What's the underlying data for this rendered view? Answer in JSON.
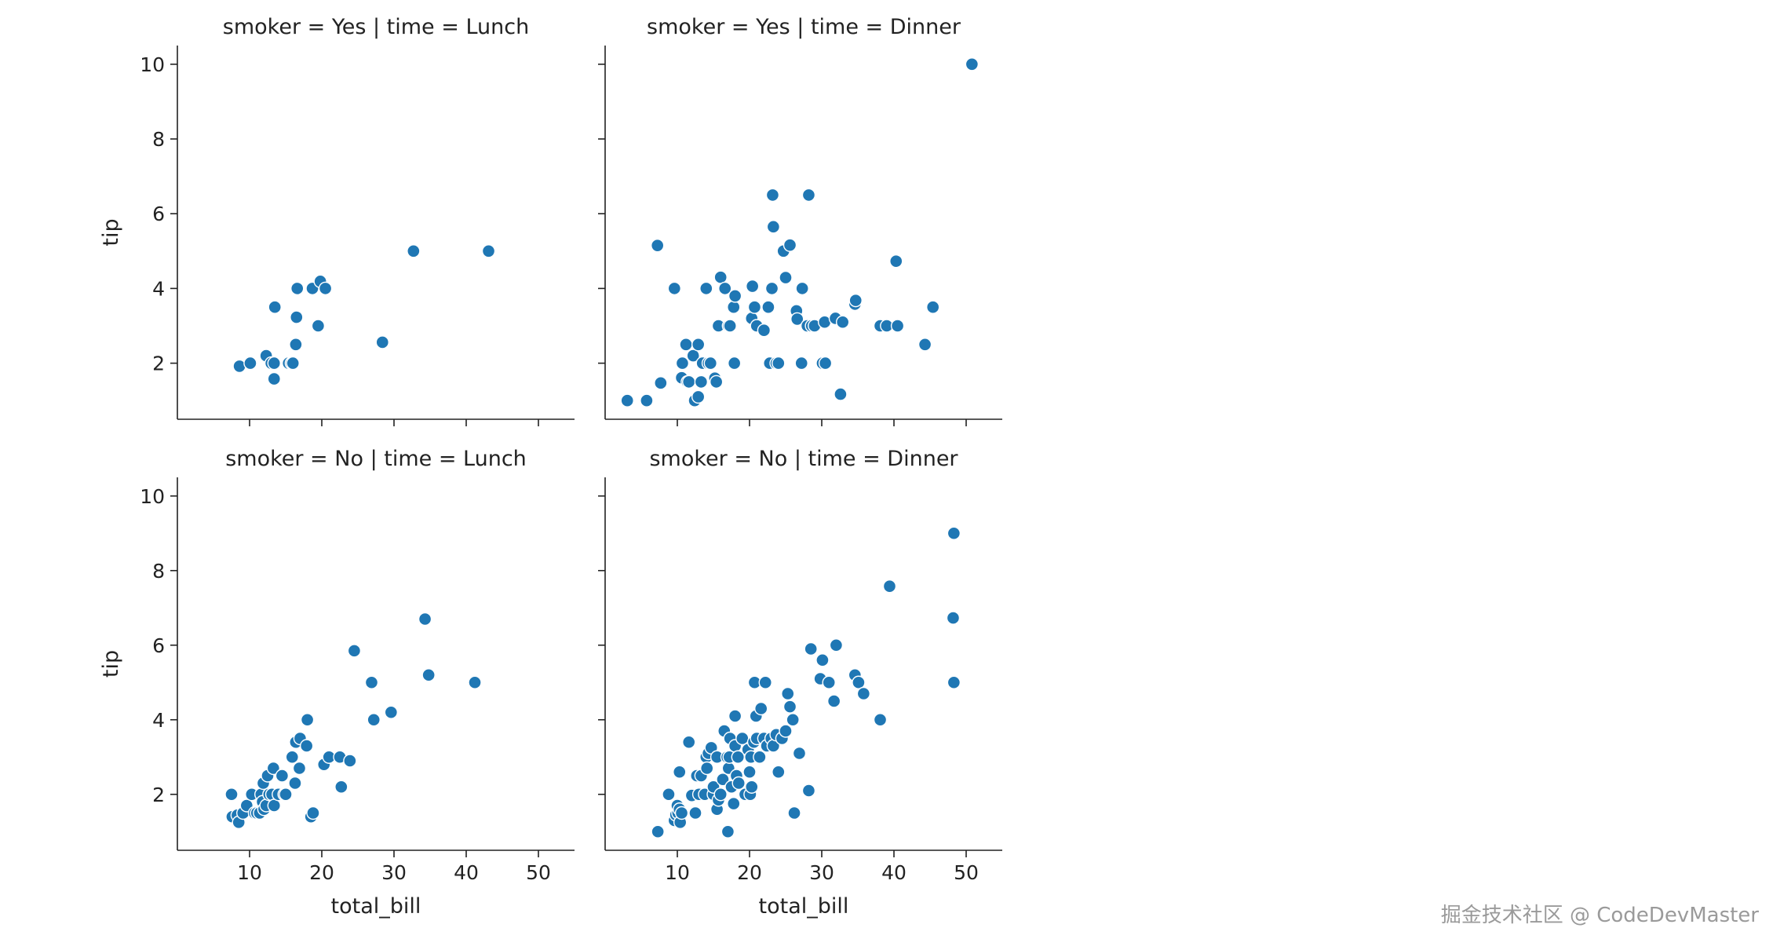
{
  "chart_data": {
    "type": "scatter",
    "description_text": {
      "xlabel": "total_bill",
      "ylabel": "tip"
    },
    "xlim": [
      0,
      55
    ],
    "ylim": [
      0.5,
      10.5
    ],
    "xticks": [
      10,
      20,
      30,
      40,
      50
    ],
    "yticks": [
      2,
      4,
      6,
      8,
      10
    ],
    "marker_color": "#1f77b4",
    "panels": [
      {
        "title": "smoker = Yes | time = Lunch",
        "points": [
          [
            8.6,
            1.92
          ],
          [
            10.1,
            2.0
          ],
          [
            12.3,
            2.2
          ],
          [
            13.0,
            2.0
          ],
          [
            13.4,
            2.0
          ],
          [
            13.4,
            1.58
          ],
          [
            13.5,
            3.5
          ],
          [
            15.4,
            2.0
          ],
          [
            15.8,
            2.0
          ],
          [
            16.0,
            2.0
          ],
          [
            16.4,
            2.5
          ],
          [
            16.5,
            3.23
          ],
          [
            16.6,
            4.0
          ],
          [
            18.7,
            4.0
          ],
          [
            19.5,
            3.0
          ],
          [
            19.8,
            4.19
          ],
          [
            20.5,
            4.0
          ],
          [
            28.4,
            2.56
          ],
          [
            32.7,
            5.0
          ],
          [
            43.1,
            5.0
          ]
        ]
      },
      {
        "title": "smoker = Yes | time = Dinner",
        "points": [
          [
            3.07,
            1.0
          ],
          [
            5.75,
            1.0
          ],
          [
            7.25,
            5.15
          ],
          [
            7.7,
            1.47
          ],
          [
            9.6,
            4.0
          ],
          [
            10.6,
            1.61
          ],
          [
            10.7,
            2.0
          ],
          [
            11.2,
            2.5
          ],
          [
            11.4,
            1.5
          ],
          [
            11.6,
            1.5
          ],
          [
            12.2,
            2.2
          ],
          [
            12.4,
            1.0
          ],
          [
            12.9,
            1.1
          ],
          [
            12.9,
            2.5
          ],
          [
            13.3,
            1.5
          ],
          [
            13.5,
            2.0
          ],
          [
            14.0,
            4.0
          ],
          [
            14.3,
            2.0
          ],
          [
            14.6,
            2.0
          ],
          [
            15.2,
            1.6
          ],
          [
            15.4,
            1.5
          ],
          [
            15.7,
            3.0
          ],
          [
            16.0,
            4.3
          ],
          [
            16.6,
            4.0
          ],
          [
            17.1,
            3.0
          ],
          [
            17.3,
            3.0
          ],
          [
            17.8,
            3.5
          ],
          [
            17.9,
            2.0
          ],
          [
            18.0,
            3.8
          ],
          [
            20.3,
            3.2
          ],
          [
            20.4,
            4.06
          ],
          [
            20.7,
            3.5
          ],
          [
            21.0,
            3.0
          ],
          [
            22.0,
            2.88
          ],
          [
            22.6,
            3.5
          ],
          [
            22.8,
            2.0
          ],
          [
            23.1,
            4.0
          ],
          [
            23.2,
            6.5
          ],
          [
            23.3,
            5.65
          ],
          [
            23.7,
            2.0
          ],
          [
            24.0,
            2.0
          ],
          [
            24.7,
            5.0
          ],
          [
            25.0,
            4.29
          ],
          [
            25.6,
            5.16
          ],
          [
            26.5,
            3.4
          ],
          [
            26.6,
            3.18
          ],
          [
            27.2,
            2.0
          ],
          [
            27.3,
            4.0
          ],
          [
            28.0,
            3.0
          ],
          [
            28.2,
            6.5
          ],
          [
            28.6,
            3.0
          ],
          [
            29.0,
            3.0
          ],
          [
            30.1,
            2.0
          ],
          [
            30.5,
            2.0
          ],
          [
            30.4,
            3.1
          ],
          [
            31.9,
            3.2
          ],
          [
            32.6,
            1.17
          ],
          [
            32.9,
            3.1
          ],
          [
            34.6,
            3.58
          ],
          [
            34.7,
            3.68
          ],
          [
            38.1,
            3.0
          ],
          [
            39.0,
            3.0
          ],
          [
            40.3,
            4.73
          ],
          [
            40.5,
            3.0
          ],
          [
            44.3,
            2.5
          ],
          [
            45.4,
            3.5
          ],
          [
            50.8,
            10.0
          ]
        ]
      },
      {
        "title": "smoker = No | time = Lunch",
        "points": [
          [
            7.5,
            2.0
          ],
          [
            7.6,
            1.4
          ],
          [
            8.3,
            1.44
          ],
          [
            8.5,
            1.25
          ],
          [
            9.1,
            1.5
          ],
          [
            9.6,
            1.7
          ],
          [
            10.3,
            2.0
          ],
          [
            10.7,
            1.5
          ],
          [
            11.0,
            1.5
          ],
          [
            11.4,
            1.5
          ],
          [
            11.6,
            2.0
          ],
          [
            11.8,
            1.8
          ],
          [
            11.9,
            2.3
          ],
          [
            12.0,
            1.6
          ],
          [
            12.3,
            1.7
          ],
          [
            12.5,
            2.5
          ],
          [
            12.7,
            2.0
          ],
          [
            13.1,
            2.0
          ],
          [
            13.3,
            2.7
          ],
          [
            13.4,
            1.7
          ],
          [
            14.0,
            2.0
          ],
          [
            14.5,
            2.5
          ],
          [
            14.8,
            2.0
          ],
          [
            15.0,
            2.0
          ],
          [
            15.9,
            3.0
          ],
          [
            16.3,
            2.3
          ],
          [
            16.4,
            3.4
          ],
          [
            16.9,
            2.7
          ],
          [
            17.0,
            3.5
          ],
          [
            17.9,
            3.3
          ],
          [
            18.0,
            4.0
          ],
          [
            18.5,
            1.4
          ],
          [
            18.8,
            1.5
          ],
          [
            20.3,
            2.8
          ],
          [
            21.0,
            3.0
          ],
          [
            22.5,
            3.0
          ],
          [
            22.7,
            2.2
          ],
          [
            23.9,
            2.9
          ],
          [
            24.5,
            5.85
          ],
          [
            26.9,
            5.0
          ],
          [
            27.2,
            4.0
          ],
          [
            29.6,
            4.2
          ],
          [
            34.3,
            6.7
          ],
          [
            34.8,
            5.2
          ],
          [
            41.2,
            5.0
          ]
        ]
      },
      {
        "title": "smoker = No | time = Dinner",
        "points": [
          [
            7.3,
            1.0
          ],
          [
            8.8,
            2.0
          ],
          [
            9.6,
            1.3
          ],
          [
            9.8,
            1.45
          ],
          [
            10.0,
            1.7
          ],
          [
            10.1,
            1.5
          ],
          [
            10.3,
            1.6
          ],
          [
            10.3,
            2.6
          ],
          [
            10.4,
            1.25
          ],
          [
            10.6,
            1.5
          ],
          [
            11.6,
            3.4
          ],
          [
            12.0,
            1.97
          ],
          [
            12.5,
            1.5
          ],
          [
            12.7,
            2.5
          ],
          [
            13.0,
            2.0
          ],
          [
            13.3,
            2.5
          ],
          [
            13.8,
            2.0
          ],
          [
            14.0,
            3.0
          ],
          [
            14.1,
            2.7
          ],
          [
            14.3,
            3.1
          ],
          [
            14.7,
            3.25
          ],
          [
            15.0,
            2.0
          ],
          [
            15.0,
            2.2
          ],
          [
            15.5,
            3.0
          ],
          [
            15.5,
            1.6
          ],
          [
            15.7,
            1.85
          ],
          [
            16.0,
            2.0
          ],
          [
            16.3,
            2.4
          ],
          [
            16.5,
            3.7
          ],
          [
            16.9,
            3.0
          ],
          [
            17.0,
            1.0
          ],
          [
            17.1,
            2.7
          ],
          [
            17.2,
            3.0
          ],
          [
            17.3,
            3.5
          ],
          [
            17.5,
            2.2
          ],
          [
            17.8,
            1.75
          ],
          [
            18.0,
            4.1
          ],
          [
            18.0,
            3.3
          ],
          [
            18.2,
            2.5
          ],
          [
            18.4,
            3.0
          ],
          [
            18.5,
            2.3
          ],
          [
            19.0,
            3.5
          ],
          [
            19.4,
            2.0
          ],
          [
            19.8,
            3.2
          ],
          [
            20.0,
            2.6
          ],
          [
            20.1,
            2.0
          ],
          [
            20.2,
            3.0
          ],
          [
            20.3,
            2.2
          ],
          [
            20.6,
            3.4
          ],
          [
            20.7,
            5.0
          ],
          [
            20.9,
            4.1
          ],
          [
            21.0,
            3.5
          ],
          [
            21.4,
            3.0
          ],
          [
            21.6,
            4.3
          ],
          [
            22.0,
            3.5
          ],
          [
            22.2,
            5.0
          ],
          [
            22.4,
            3.3
          ],
          [
            23.0,
            3.5
          ],
          [
            23.3,
            3.3
          ],
          [
            23.7,
            3.6
          ],
          [
            24.0,
            2.6
          ],
          [
            24.5,
            3.5
          ],
          [
            25.0,
            3.7
          ],
          [
            25.3,
            4.7
          ],
          [
            25.6,
            4.35
          ],
          [
            26.0,
            4.0
          ],
          [
            26.2,
            1.5
          ],
          [
            26.9,
            3.1
          ],
          [
            28.2,
            2.1
          ],
          [
            28.5,
            5.9
          ],
          [
            29.8,
            5.1
          ],
          [
            30.1,
            5.6
          ],
          [
            31.0,
            5.0
          ],
          [
            31.7,
            4.5
          ],
          [
            32.0,
            6.0
          ],
          [
            34.6,
            5.2
          ],
          [
            35.1,
            5.0
          ],
          [
            35.8,
            4.7
          ],
          [
            38.1,
            4.0
          ],
          [
            39.4,
            7.58
          ],
          [
            48.2,
            6.73
          ],
          [
            48.3,
            9.0
          ],
          [
            48.3,
            5.0
          ]
        ]
      }
    ]
  },
  "watermark": "掘金技术社区 @ CodeDevMaster"
}
